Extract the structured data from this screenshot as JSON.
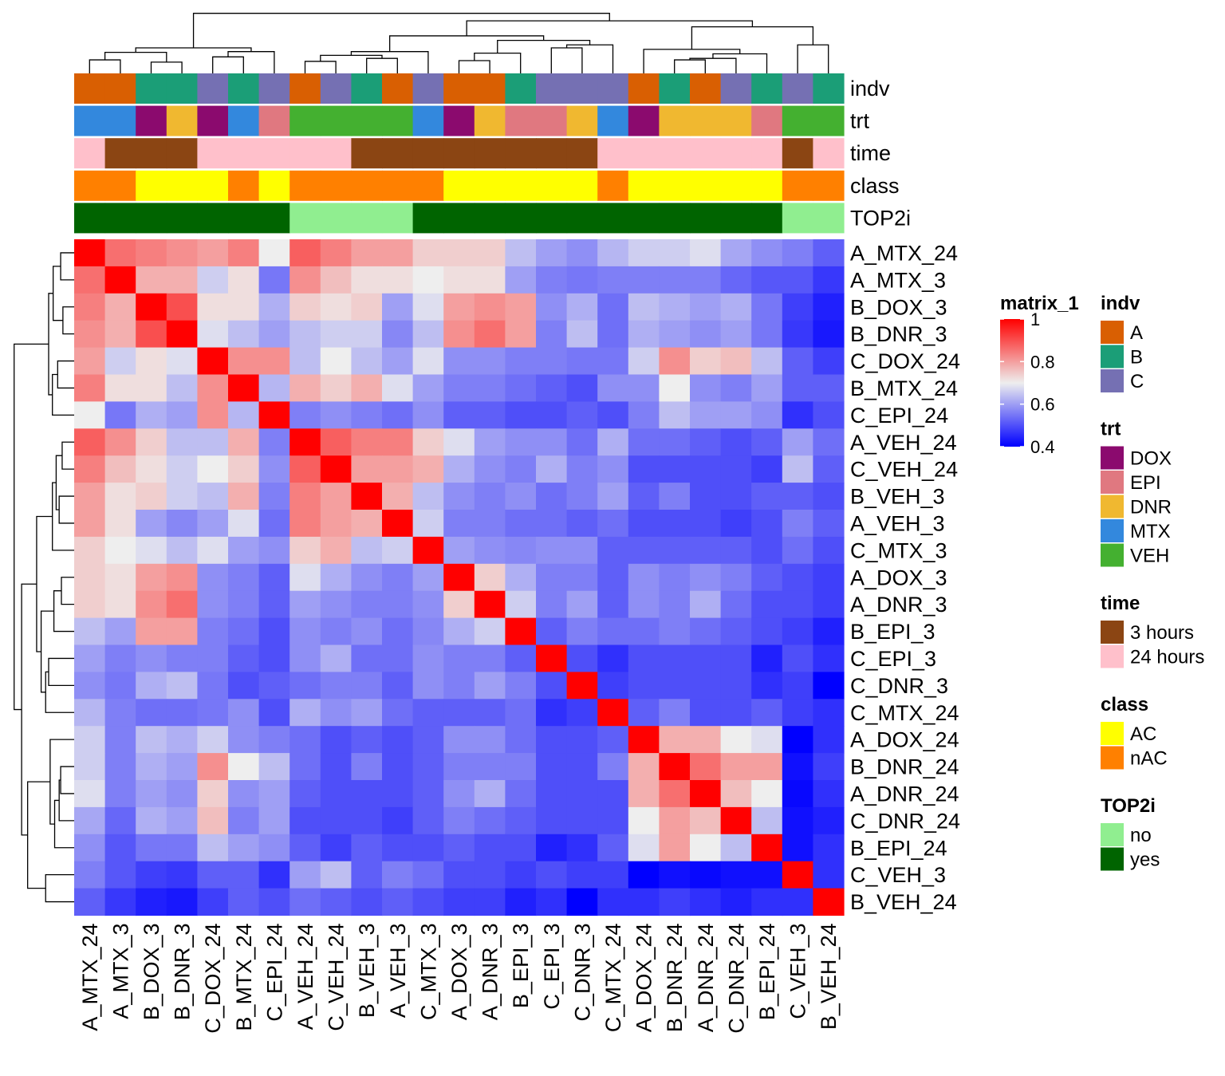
{
  "chart_data": {
    "type": "heatmap",
    "title": "",
    "samples": [
      "A_MTX_24",
      "A_MTX_3",
      "B_DOX_3",
      "B_DNR_3",
      "C_DOX_24",
      "B_MTX_24",
      "C_EPI_24",
      "A_VEH_24",
      "C_VEH_24",
      "B_VEH_3",
      "A_VEH_3",
      "C_MTX_3",
      "A_DOX_3",
      "A_DNR_3",
      "B_EPI_3",
      "C_EPI_3",
      "C_DNR_3",
      "C_MTX_24",
      "A_DOX_24",
      "B_DNR_24",
      "A_DNR_24",
      "C_DNR_24",
      "B_EPI_24",
      "C_VEH_3",
      "B_VEH_24"
    ],
    "matrix": [
      [
        1.0,
        0.86,
        0.84,
        0.82,
        0.8,
        0.84,
        0.7,
        0.88,
        0.84,
        0.8,
        0.8,
        0.74,
        0.74,
        0.74,
        0.64,
        0.6,
        0.58,
        0.63,
        0.66,
        0.66,
        0.68,
        0.61,
        0.58,
        0.56,
        0.52
      ],
      [
        0.86,
        1.0,
        0.78,
        0.78,
        0.66,
        0.72,
        0.55,
        0.82,
        0.76,
        0.72,
        0.72,
        0.7,
        0.72,
        0.72,
        0.6,
        0.56,
        0.55,
        0.56,
        0.56,
        0.56,
        0.56,
        0.53,
        0.51,
        0.51,
        0.47
      ],
      [
        0.84,
        0.78,
        1.0,
        0.9,
        0.72,
        0.72,
        0.62,
        0.74,
        0.72,
        0.74,
        0.6,
        0.68,
        0.8,
        0.82,
        0.8,
        0.58,
        0.62,
        0.54,
        0.64,
        0.62,
        0.6,
        0.62,
        0.55,
        0.48,
        0.44
      ],
      [
        0.82,
        0.78,
        0.9,
        1.0,
        0.68,
        0.64,
        0.6,
        0.64,
        0.66,
        0.66,
        0.57,
        0.64,
        0.82,
        0.86,
        0.8,
        0.56,
        0.64,
        0.54,
        0.62,
        0.6,
        0.58,
        0.6,
        0.55,
        0.47,
        0.43
      ],
      [
        0.8,
        0.66,
        0.72,
        0.68,
        1.0,
        0.82,
        0.82,
        0.64,
        0.7,
        0.64,
        0.6,
        0.68,
        0.58,
        0.58,
        0.56,
        0.56,
        0.55,
        0.55,
        0.66,
        0.82,
        0.74,
        0.76,
        0.64,
        0.52,
        0.48
      ],
      [
        0.84,
        0.72,
        0.72,
        0.64,
        0.82,
        1.0,
        0.63,
        0.78,
        0.74,
        0.78,
        0.68,
        0.6,
        0.56,
        0.56,
        0.54,
        0.52,
        0.5,
        0.58,
        0.58,
        0.7,
        0.58,
        0.56,
        0.6,
        0.52,
        0.52
      ],
      [
        0.7,
        0.55,
        0.62,
        0.6,
        0.82,
        0.63,
        1.0,
        0.56,
        0.58,
        0.56,
        0.54,
        0.58,
        0.52,
        0.52,
        0.5,
        0.5,
        0.52,
        0.5,
        0.56,
        0.64,
        0.6,
        0.6,
        0.58,
        0.46,
        0.5
      ],
      [
        0.88,
        0.82,
        0.74,
        0.64,
        0.64,
        0.78,
        0.56,
        1.0,
        0.88,
        0.84,
        0.84,
        0.74,
        0.68,
        0.6,
        0.58,
        0.58,
        0.54,
        0.62,
        0.54,
        0.54,
        0.52,
        0.5,
        0.52,
        0.6,
        0.54
      ],
      [
        0.84,
        0.76,
        0.72,
        0.66,
        0.7,
        0.74,
        0.58,
        0.88,
        1.0,
        0.8,
        0.8,
        0.78,
        0.62,
        0.58,
        0.56,
        0.62,
        0.56,
        0.58,
        0.5,
        0.5,
        0.5,
        0.5,
        0.48,
        0.64,
        0.52
      ],
      [
        0.8,
        0.72,
        0.74,
        0.66,
        0.64,
        0.78,
        0.56,
        0.84,
        0.8,
        1.0,
        0.78,
        0.64,
        0.58,
        0.56,
        0.58,
        0.54,
        0.56,
        0.6,
        0.52,
        0.56,
        0.5,
        0.5,
        0.52,
        0.52,
        0.5
      ],
      [
        0.8,
        0.72,
        0.6,
        0.57,
        0.6,
        0.68,
        0.54,
        0.84,
        0.8,
        0.78,
        1.0,
        0.66,
        0.56,
        0.56,
        0.54,
        0.54,
        0.52,
        0.54,
        0.5,
        0.5,
        0.5,
        0.48,
        0.5,
        0.56,
        0.52
      ],
      [
        0.74,
        0.7,
        0.68,
        0.64,
        0.68,
        0.6,
        0.58,
        0.74,
        0.78,
        0.64,
        0.66,
        1.0,
        0.6,
        0.58,
        0.57,
        0.58,
        0.58,
        0.52,
        0.52,
        0.52,
        0.52,
        0.52,
        0.5,
        0.54,
        0.5
      ],
      [
        0.74,
        0.72,
        0.8,
        0.82,
        0.58,
        0.56,
        0.52,
        0.68,
        0.62,
        0.58,
        0.56,
        0.6,
        1.0,
        0.74,
        0.62,
        0.56,
        0.56,
        0.52,
        0.58,
        0.56,
        0.58,
        0.56,
        0.52,
        0.5,
        0.48
      ],
      [
        0.74,
        0.72,
        0.82,
        0.86,
        0.58,
        0.56,
        0.52,
        0.6,
        0.58,
        0.56,
        0.56,
        0.58,
        0.74,
        1.0,
        0.66,
        0.56,
        0.6,
        0.52,
        0.58,
        0.56,
        0.62,
        0.54,
        0.5,
        0.5,
        0.48
      ],
      [
        0.64,
        0.6,
        0.8,
        0.8,
        0.56,
        0.54,
        0.5,
        0.58,
        0.56,
        0.58,
        0.54,
        0.57,
        0.62,
        0.66,
        1.0,
        0.52,
        0.56,
        0.54,
        0.54,
        0.56,
        0.54,
        0.52,
        0.5,
        0.48,
        0.44
      ],
      [
        0.6,
        0.56,
        0.58,
        0.56,
        0.56,
        0.52,
        0.5,
        0.58,
        0.62,
        0.54,
        0.54,
        0.58,
        0.56,
        0.56,
        0.52,
        1.0,
        0.5,
        0.46,
        0.5,
        0.5,
        0.5,
        0.5,
        0.44,
        0.5,
        0.46
      ],
      [
        0.58,
        0.55,
        0.62,
        0.64,
        0.55,
        0.5,
        0.52,
        0.54,
        0.56,
        0.56,
        0.52,
        0.58,
        0.56,
        0.6,
        0.56,
        0.5,
        1.0,
        0.48,
        0.5,
        0.5,
        0.5,
        0.5,
        0.46,
        0.48,
        0.4
      ],
      [
        0.63,
        0.56,
        0.54,
        0.54,
        0.55,
        0.58,
        0.5,
        0.62,
        0.58,
        0.6,
        0.54,
        0.52,
        0.52,
        0.52,
        0.54,
        0.46,
        0.48,
        1.0,
        0.52,
        0.56,
        0.5,
        0.5,
        0.52,
        0.48,
        0.46
      ],
      [
        0.66,
        0.56,
        0.64,
        0.62,
        0.66,
        0.58,
        0.56,
        0.54,
        0.5,
        0.52,
        0.5,
        0.52,
        0.58,
        0.58,
        0.54,
        0.5,
        0.5,
        0.52,
        1.0,
        0.78,
        0.78,
        0.7,
        0.68,
        0.4,
        0.46
      ],
      [
        0.66,
        0.56,
        0.62,
        0.6,
        0.82,
        0.7,
        0.64,
        0.54,
        0.5,
        0.56,
        0.5,
        0.52,
        0.56,
        0.56,
        0.56,
        0.5,
        0.5,
        0.56,
        0.78,
        1.0,
        0.86,
        0.8,
        0.8,
        0.42,
        0.48
      ],
      [
        0.68,
        0.56,
        0.6,
        0.58,
        0.74,
        0.58,
        0.6,
        0.52,
        0.5,
        0.5,
        0.5,
        0.52,
        0.58,
        0.62,
        0.54,
        0.5,
        0.5,
        0.5,
        0.78,
        0.86,
        1.0,
        0.76,
        0.7,
        0.41,
        0.46
      ],
      [
        0.61,
        0.53,
        0.62,
        0.6,
        0.76,
        0.56,
        0.6,
        0.5,
        0.5,
        0.5,
        0.48,
        0.52,
        0.56,
        0.54,
        0.52,
        0.5,
        0.5,
        0.5,
        0.7,
        0.8,
        0.76,
        1.0,
        0.64,
        0.42,
        0.44
      ],
      [
        0.58,
        0.51,
        0.55,
        0.55,
        0.64,
        0.6,
        0.58,
        0.52,
        0.48,
        0.52,
        0.5,
        0.5,
        0.52,
        0.5,
        0.5,
        0.44,
        0.46,
        0.52,
        0.68,
        0.8,
        0.7,
        0.64,
        1.0,
        0.42,
        0.46
      ],
      [
        0.56,
        0.51,
        0.48,
        0.47,
        0.52,
        0.52,
        0.46,
        0.6,
        0.64,
        0.52,
        0.56,
        0.54,
        0.5,
        0.5,
        0.48,
        0.5,
        0.48,
        0.48,
        0.4,
        0.42,
        0.41,
        0.42,
        0.42,
        1.0,
        0.46
      ],
      [
        0.52,
        0.47,
        0.44,
        0.43,
        0.48,
        0.52,
        0.5,
        0.54,
        0.52,
        0.5,
        0.52,
        0.5,
        0.48,
        0.48,
        0.44,
        0.46,
        0.4,
        0.46,
        0.46,
        0.48,
        0.46,
        0.44,
        0.46,
        0.46,
        1.0
      ]
    ],
    "color_scale": {
      "title": "matrix_1",
      "stops": [
        {
          "value": 0.4,
          "color": "#0000ff"
        },
        {
          "value": 0.7,
          "color": "#eeeeee"
        },
        {
          "value": 1.0,
          "color": "#ff0000"
        }
      ],
      "ticks": [
        "1",
        "0.8",
        "0.6",
        "0.4"
      ]
    },
    "annotation_tracks": [
      {
        "name": "indv",
        "values": [
          "A",
          "A",
          "B",
          "B",
          "C",
          "B",
          "C",
          "A",
          "C",
          "B",
          "A",
          "C",
          "A",
          "A",
          "B",
          "C",
          "C",
          "C",
          "A",
          "B",
          "A",
          "C",
          "B",
          "C",
          "B"
        ]
      },
      {
        "name": "trt",
        "values": [
          "MTX",
          "MTX",
          "DOX",
          "DNR",
          "DOX",
          "MTX",
          "EPI",
          "VEH",
          "VEH",
          "VEH",
          "VEH",
          "MTX",
          "DOX",
          "DNR",
          "EPI",
          "EPI",
          "DNR",
          "MTX",
          "DOX",
          "DNR",
          "DNR",
          "DNR",
          "EPI",
          "VEH",
          "VEH"
        ]
      },
      {
        "name": "time",
        "values": [
          "24 hours",
          "3 hours",
          "3 hours",
          "3 hours",
          "24 hours",
          "24 hours",
          "24 hours",
          "24 hours",
          "24 hours",
          "3 hours",
          "3 hours",
          "3 hours",
          "3 hours",
          "3 hours",
          "3 hours",
          "3 hours",
          "3 hours",
          "24 hours",
          "24 hours",
          "24 hours",
          "24 hours",
          "24 hours",
          "24 hours",
          "3 hours",
          "24 hours"
        ]
      },
      {
        "name": "class",
        "values": [
          "nAC",
          "nAC",
          "AC",
          "AC",
          "AC",
          "nAC",
          "AC",
          "nAC",
          "nAC",
          "nAC",
          "nAC",
          "nAC",
          "AC",
          "AC",
          "AC",
          "AC",
          "AC",
          "nAC",
          "AC",
          "AC",
          "AC",
          "AC",
          "AC",
          "nAC",
          "nAC"
        ]
      },
      {
        "name": "TOP2i",
        "values": [
          "yes",
          "yes",
          "yes",
          "yes",
          "yes",
          "yes",
          "yes",
          "no",
          "no",
          "no",
          "no",
          "yes",
          "yes",
          "yes",
          "yes",
          "yes",
          "yes",
          "yes",
          "yes",
          "yes",
          "yes",
          "yes",
          "yes",
          "no",
          "no"
        ]
      }
    ],
    "legends": [
      {
        "title": "indv",
        "items": [
          {
            "label": "A",
            "color": "#d95f02"
          },
          {
            "label": "B",
            "color": "#1b9e77"
          },
          {
            "label": "C",
            "color": "#7570b3"
          }
        ]
      },
      {
        "title": "trt",
        "items": [
          {
            "label": "DOX",
            "color": "#8b0a6e"
          },
          {
            "label": "EPI",
            "color": "#e07880"
          },
          {
            "label": "DNR",
            "color": "#f0b830"
          },
          {
            "label": "MTX",
            "color": "#3388dd"
          },
          {
            "label": "VEH",
            "color": "#44b030"
          }
        ]
      },
      {
        "title": "time",
        "items": [
          {
            "label": "3 hours",
            "color": "#8b4513"
          },
          {
            "label": "24 hours",
            "color": "#ffc0cb"
          }
        ]
      },
      {
        "title": "class",
        "items": [
          {
            "label": "AC",
            "color": "#ffff00"
          },
          {
            "label": "nAC",
            "color": "#ff8000"
          }
        ]
      },
      {
        "title": "TOP2i",
        "items": [
          {
            "label": "no",
            "color": "#90ee90"
          },
          {
            "label": "yes",
            "color": "#006400"
          }
        ]
      }
    ],
    "dendrogram": {
      "merges": [
        [
          0,
          1,
          0.18
        ],
        [
          2,
          3,
          0.15
        ],
        [
          25,
          26,
          0.28
        ],
        [
          4,
          5,
          0.22
        ],
        [
          28,
          6,
          0.29
        ],
        [
          27,
          29,
          0.34
        ],
        [
          7,
          8,
          0.16
        ],
        [
          9,
          10,
          0.2
        ],
        [
          31,
          32,
          0.24
        ],
        [
          33,
          11,
          0.29
        ],
        [
          12,
          13,
          0.17
        ],
        [
          35,
          14,
          0.27
        ],
        [
          15,
          16,
          0.34
        ],
        [
          37,
          17,
          0.38
        ],
        [
          36,
          38,
          0.44
        ],
        [
          34,
          39,
          0.5
        ],
        [
          19,
          20,
          0.18
        ],
        [
          41,
          21,
          0.2
        ],
        [
          42,
          22,
          0.26
        ],
        [
          18,
          43,
          0.32
        ],
        [
          23,
          24,
          0.38
        ],
        [
          44,
          45,
          0.62
        ],
        [
          40,
          46,
          0.7
        ],
        [
          30,
          47,
          0.8
        ]
      ],
      "max_height": 0.85
    }
  }
}
